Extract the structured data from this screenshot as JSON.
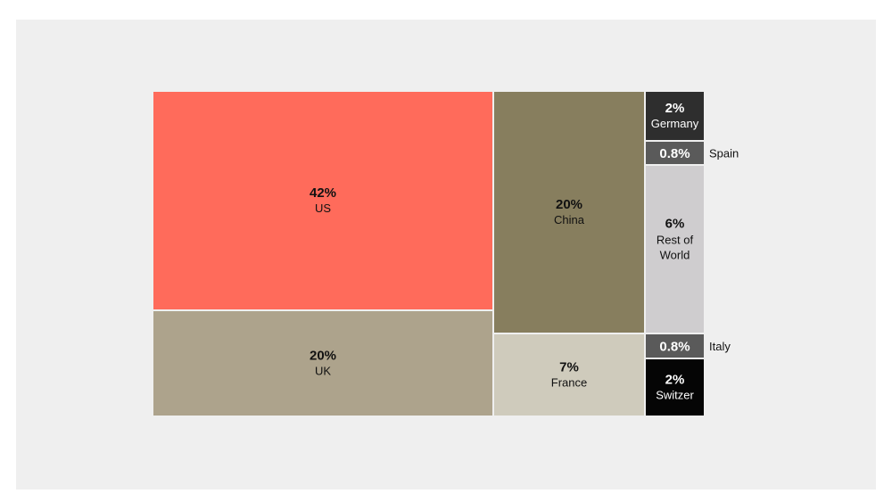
{
  "chart_data": {
    "type": "treemap",
    "title": "",
    "cells": [
      {
        "pct": "42%",
        "label": "US",
        "value": 42,
        "color": "#ff6b5b",
        "text_color": "#111111"
      },
      {
        "pct": "20%",
        "label": "UK",
        "value": 20,
        "color": "#ada38c",
        "text_color": "#111111"
      },
      {
        "pct": "20%",
        "label": "China",
        "value": 20,
        "color": "#877e5e",
        "text_color": "#111111"
      },
      {
        "pct": "7%",
        "label": "France",
        "value": 7,
        "color": "#cfcbbc",
        "text_color": "#111111"
      },
      {
        "pct": "2%",
        "label": "Germany",
        "value": 2,
        "color": "#2e2e2e",
        "text_color": "#ffffff"
      },
      {
        "pct": "0.8%",
        "label": "Spain",
        "value": 0.8,
        "color": "#5a5a5a",
        "text_color": "#ffffff"
      },
      {
        "pct": "6%",
        "label": "Rest of World",
        "value": 6,
        "color": "#cfcdcf",
        "text_color": "#111111"
      },
      {
        "pct": "0.8%",
        "label": "Italy",
        "value": 0.8,
        "color": "#5a5a5a",
        "text_color": "#ffffff"
      },
      {
        "pct": "2%",
        "label": "Switzer",
        "value": 2,
        "color": "#050505",
        "text_color": "#ffffff"
      }
    ]
  }
}
